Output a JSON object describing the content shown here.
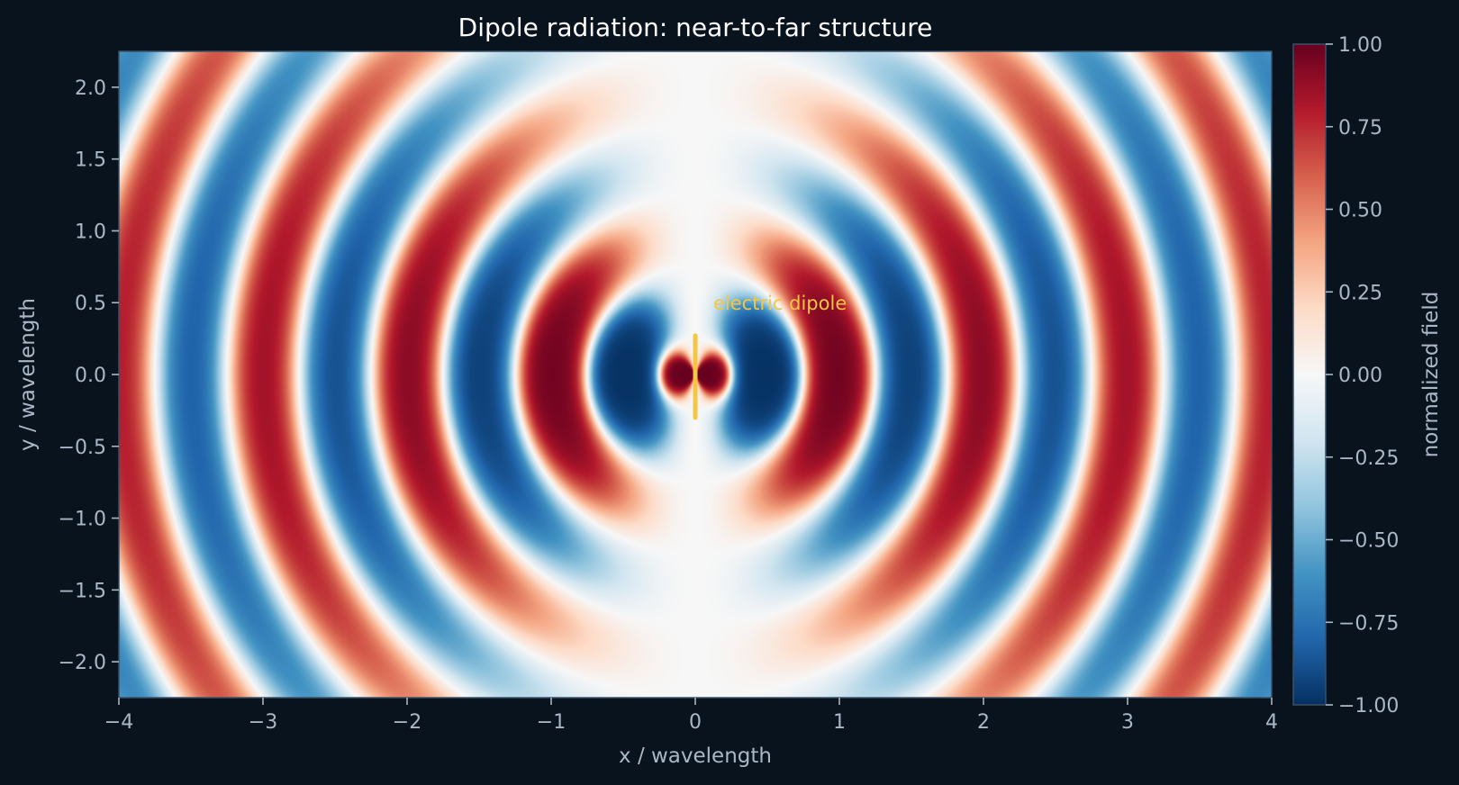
{
  "chart_data": {
    "type": "heatmap",
    "title": "Dipole radiation: near-to-far structure",
    "xlabel": "x / wavelength",
    "ylabel": "y / wavelength",
    "xlim": [
      -4,
      4
    ],
    "ylim": [
      -2.25,
      2.25
    ],
    "xticks": [
      -4,
      -3,
      -2,
      -1,
      0,
      1,
      2,
      3,
      4
    ],
    "xtick_labels": [
      "−4",
      "−3",
      "−2",
      "−1",
      "0",
      "1",
      "2",
      "3",
      "4"
    ],
    "yticks": [
      -2.0,
      -1.5,
      -1.0,
      -0.5,
      0.0,
      0.5,
      1.0,
      1.5,
      2.0
    ],
    "ytick_labels": [
      "−2.0",
      "−1.5",
      "−1.0",
      "−0.5",
      "0.0",
      "0.5",
      "1.0",
      "1.5",
      "2.0"
    ],
    "colormap": "RdBu_r",
    "colorbar": {
      "label": "normalized field",
      "range": [
        -1,
        1
      ],
      "ticks": [
        1.0,
        0.75,
        0.5,
        0.25,
        0.0,
        -0.25,
        -0.5,
        -0.75,
        -1.0
      ],
      "tick_labels": [
        "1.00",
        "0.75",
        "0.50",
        "0.25",
        "0.00",
        "−0.25",
        "−0.50",
        "−0.75",
        "−1.00"
      ]
    },
    "field": {
      "description": "normalized dipole field, radial wave pattern centered at origin, strongest near source, sin-squared angular dependence",
      "wavelength": 1.0
    },
    "dipole": {
      "label": "electric dipole",
      "x": 0,
      "y": [
        -0.3,
        0.27
      ],
      "color": "#f6c543"
    },
    "grid": false
  }
}
